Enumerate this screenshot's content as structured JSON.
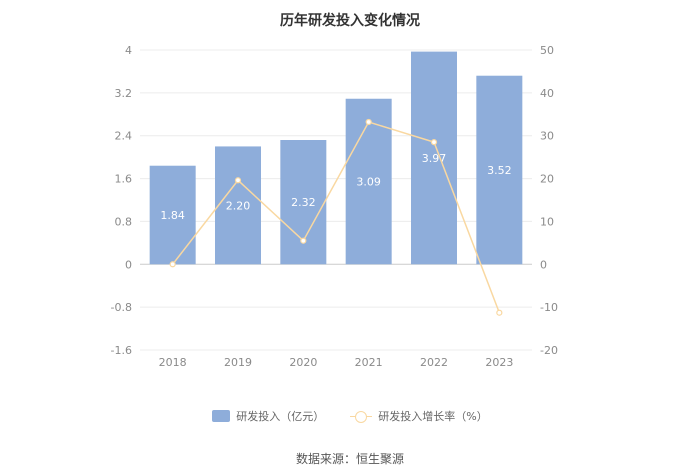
{
  "chart_data": {
    "type": "bar",
    "title": "历年研发投入变化情况",
    "categories": [
      "2018",
      "2019",
      "2020",
      "2021",
      "2022",
      "2023"
    ],
    "series": [
      {
        "name": "研发投入（亿元）",
        "type": "bar",
        "axis": "left",
        "values": [
          1.84,
          2.2,
          2.32,
          3.09,
          3.97,
          3.52
        ],
        "labels": [
          "1.84",
          "2.20",
          "2.32",
          "3.09",
          "3.97",
          "3.52"
        ],
        "color": "#8eadda"
      },
      {
        "name": "研发投入增长率（%）",
        "type": "line",
        "axis": "right",
        "values": [
          0,
          19.6,
          5.5,
          33.2,
          28.5,
          -11.3
        ],
        "color": "#f9d8a1"
      }
    ],
    "y_left": {
      "ylim": [
        -1.6,
        4
      ],
      "ticks": [
        "4",
        "3.2",
        "2.4",
        "1.6",
        "0.8",
        "0",
        "-0.8",
        "-1.6"
      ]
    },
    "y_right": {
      "ylim": [
        -20,
        50
      ],
      "ticks": [
        "50",
        "40",
        "30",
        "20",
        "10",
        "0",
        "-10",
        "-20"
      ]
    },
    "grid": true,
    "legend_position": "bottom"
  },
  "source": "数据来源：恒生聚源"
}
